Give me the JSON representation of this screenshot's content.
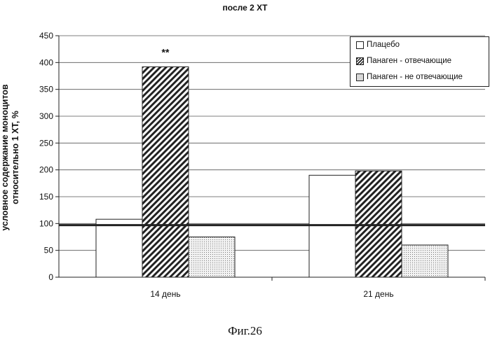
{
  "chart_data": {
    "type": "bar",
    "title": "после 2 ХТ",
    "ylabel_lines": [
      "условное содержание моноцитов",
      "относительно 1 ХТ, %"
    ],
    "categories": [
      "14 день",
      "21 день"
    ],
    "series": [
      {
        "name": "Плацебо",
        "values": [
          108,
          190
        ],
        "color": "#ffffff",
        "pattern": "solid"
      },
      {
        "name": "Панаген - отвечающие",
        "values": [
          392,
          198
        ],
        "color": "#222222",
        "pattern": "diagonal-hatch"
      },
      {
        "name": "Панаген - не отвечающие",
        "values": [
          75,
          60
        ],
        "color": "#d8d8d8",
        "pattern": "dots"
      }
    ],
    "ylim": [
      0,
      450
    ],
    "yticks": [
      0,
      50,
      100,
      150,
      200,
      250,
      300,
      350,
      400,
      450
    ],
    "reference_line": 97,
    "annotations": [
      {
        "text": "**",
        "category": "14 день",
        "series": "Панаген - отвечающие"
      }
    ],
    "grid": true,
    "legend_position": "top-right"
  },
  "figure_caption": "Фиг.26"
}
